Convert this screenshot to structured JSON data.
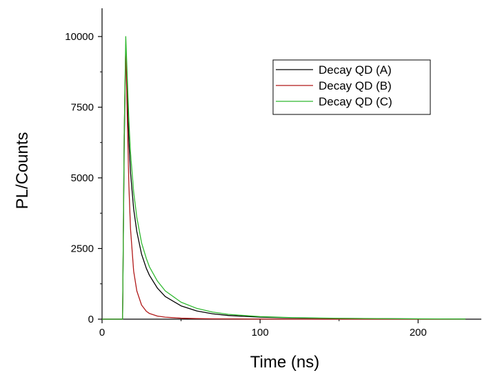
{
  "chart_data": {
    "type": "line",
    "xlabel": "Time (ns)",
    "ylabel": "PL/Counts",
    "xlim": [
      0,
      240
    ],
    "ylim": [
      0,
      11000
    ],
    "x_ticks": [
      0,
      100,
      200
    ],
    "x_tick_labels": [
      "0",
      "100",
      "200"
    ],
    "y_ticks": [
      0,
      2500,
      5000,
      7500,
      10000
    ],
    "y_tick_labels": [
      "0",
      "2500",
      "5000",
      "7500",
      "10000"
    ],
    "grid": false,
    "legend_position": "top-right",
    "series": [
      {
        "name": "Decay QD (A)",
        "color": "#000000",
        "x": [
          0,
          12,
          13,
          14,
          15,
          16,
          17,
          18,
          20,
          22,
          25,
          28,
          30,
          35,
          40,
          50,
          60,
          70,
          80,
          100,
          120,
          150,
          200,
          230
        ],
        "y": [
          0,
          0,
          0,
          6000,
          9700,
          8000,
          6300,
          5200,
          3900,
          3100,
          2300,
          1800,
          1550,
          1100,
          800,
          470,
          290,
          190,
          130,
          70,
          45,
          25,
          10,
          5
        ]
      },
      {
        "name": "Decay QD (B)",
        "color": "#b01818",
        "x": [
          0,
          12,
          13,
          14,
          15,
          16,
          17,
          18,
          20,
          22,
          25,
          28,
          30,
          35,
          40,
          50,
          60,
          70,
          100,
          150,
          230
        ],
        "y": [
          0,
          0,
          0,
          6500,
          9700,
          7000,
          4700,
          3200,
          1700,
          1000,
          500,
          280,
          200,
          110,
          70,
          35,
          20,
          12,
          5,
          2,
          0
        ]
      },
      {
        "name": "Decay QD (C)",
        "color": "#2fb82f",
        "x": [
          0,
          12,
          13,
          14,
          15,
          16,
          17,
          18,
          20,
          22,
          25,
          28,
          30,
          35,
          40,
          50,
          60,
          70,
          80,
          100,
          120,
          150,
          200,
          230
        ],
        "y": [
          0,
          0,
          0,
          6500,
          10000,
          8500,
          7000,
          5900,
          4500,
          3600,
          2700,
          2150,
          1850,
          1350,
          1000,
          600,
          380,
          250,
          170,
          90,
          55,
          30,
          12,
          5
        ]
      }
    ]
  }
}
